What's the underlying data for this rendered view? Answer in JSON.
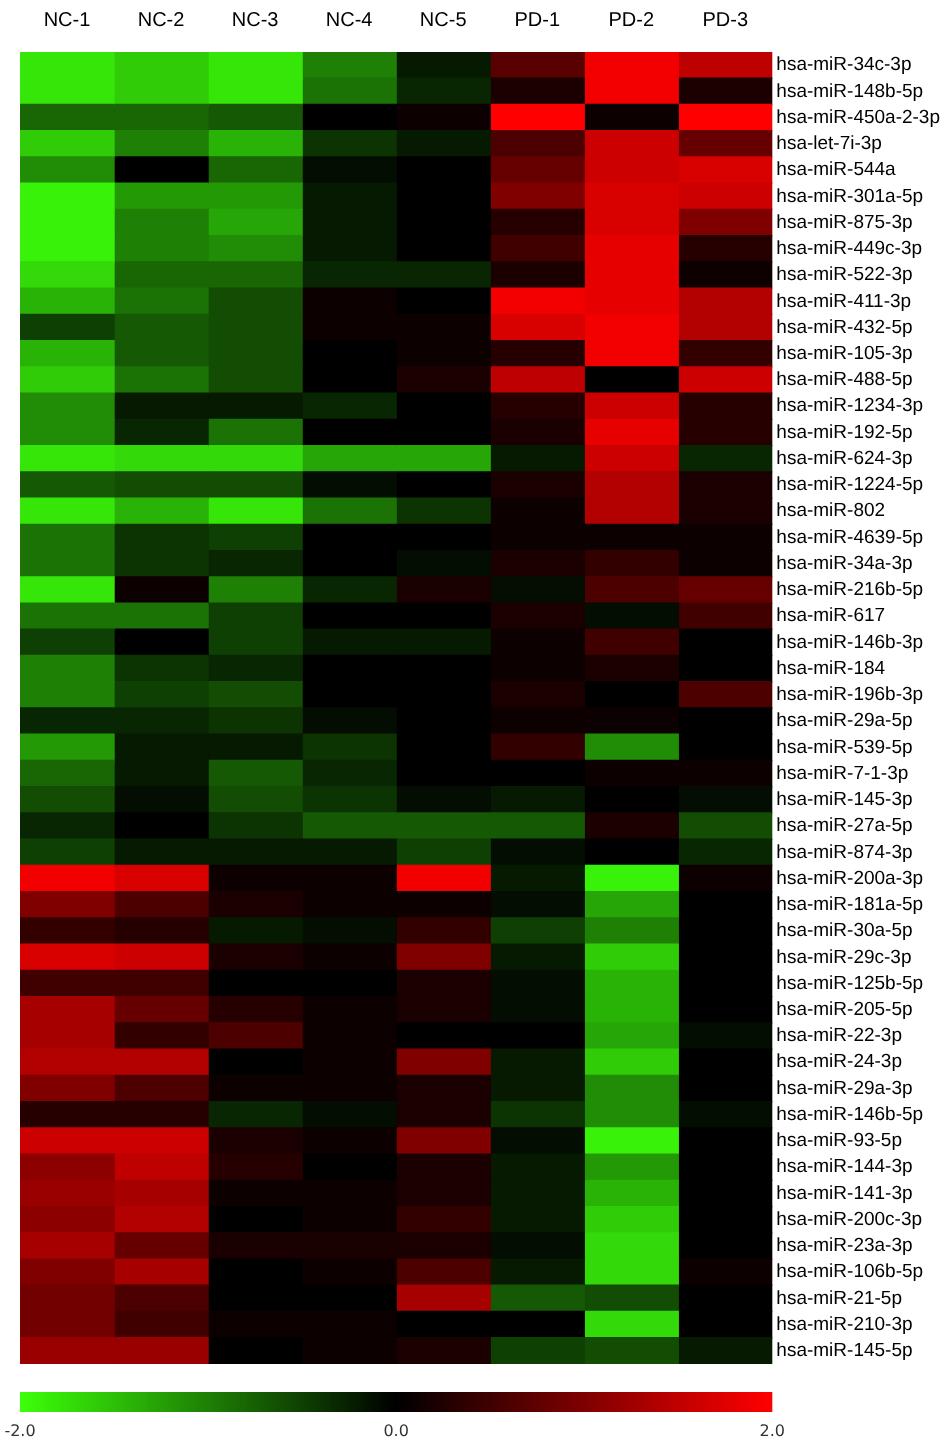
{
  "chart_data": {
    "type": "heatmap",
    "categories": [
      "NC-1",
      "NC-2",
      "NC-3",
      "NC-4",
      "NC-5",
      "PD-1",
      "PD-2",
      "PD-3"
    ],
    "y_categories": [
      "hsa-miR-34c-3p",
      "hsa-miR-148b-5p",
      "hsa-miR-450a-2-3p",
      "hsa-let-7i-3p",
      "hsa-miR-544a",
      "hsa-miR-301a-5p",
      "hsa-miR-875-3p",
      "hsa-miR-449c-3p",
      "hsa-miR-522-3p",
      "hsa-miR-411-3p",
      "hsa-miR-432-5p",
      "hsa-miR-105-3p",
      "hsa-miR-488-5p",
      "hsa-miR-1234-3p",
      "hsa-miR-192-5p",
      "hsa-miR-624-3p",
      "hsa-miR-1224-5p",
      "hsa-miR-802",
      "hsa-miR-4639-5p",
      "hsa-miR-34a-3p",
      "hsa-miR-216b-5p",
      "hsa-miR-617",
      "hsa-miR-146b-3p",
      "hsa-miR-184",
      "hsa-miR-196b-3p",
      "hsa-miR-29a-5p",
      "hsa-miR-539-5p",
      "hsa-miR-7-1-3p",
      "hsa-miR-145-3p",
      "hsa-miR-27a-5p",
      "hsa-miR-874-3p",
      "hsa-miR-200a-3p",
      "hsa-miR-181a-5p",
      "hsa-miR-30a-5p",
      "hsa-miR-29c-3p",
      "hsa-miR-125b-5p",
      "hsa-miR-205-5p",
      "hsa-miR-22-3p",
      "hsa-miR-24-3p",
      "hsa-miR-29a-3p",
      "hsa-miR-146b-5p",
      "hsa-miR-93-5p",
      "hsa-miR-144-3p",
      "hsa-miR-141-3p",
      "hsa-miR-200c-3p",
      "hsa-miR-23a-3p",
      "hsa-miR-106b-5p",
      "hsa-miR-21-5p",
      "hsa-miR-210-3p",
      "hsa-miR-145-5p"
    ],
    "cells": [
      [
        -1.8,
        -1.6,
        -1.8,
        -1.0,
        -0.2,
        0.7,
        1.9,
        1.5
      ],
      [
        -1.8,
        -1.6,
        -1.8,
        -0.9,
        -0.3,
        0.2,
        1.9,
        0.2
      ],
      [
        -0.8,
        -0.8,
        -0.7,
        0.0,
        0.1,
        2.0,
        0.1,
        2.0
      ],
      [
        -1.6,
        -1.0,
        -1.4,
        -0.4,
        -0.2,
        0.6,
        1.6,
        0.8
      ],
      [
        -1.1,
        0.0,
        -0.8,
        -0.1,
        0.0,
        0.8,
        1.6,
        1.7
      ],
      [
        -1.9,
        -1.2,
        -1.2,
        -0.2,
        0.0,
        1.0,
        1.7,
        1.6
      ],
      [
        -1.9,
        -1.0,
        -1.3,
        -0.2,
        0.0,
        0.3,
        1.7,
        1.0
      ],
      [
        -1.9,
        -1.0,
        -1.1,
        -0.2,
        0.0,
        0.5,
        1.8,
        0.3
      ],
      [
        -1.7,
        -0.8,
        -0.8,
        -0.3,
        -0.3,
        0.2,
        1.8,
        0.1
      ],
      [
        -1.4,
        -0.9,
        -0.6,
        0.1,
        0.0,
        1.9,
        1.8,
        1.4
      ],
      [
        -0.5,
        -0.7,
        -0.6,
        0.1,
        0.1,
        1.7,
        1.9,
        1.4
      ],
      [
        -1.4,
        -0.7,
        -0.6,
        0.0,
        0.1,
        0.3,
        1.9,
        0.4
      ],
      [
        -1.6,
        -0.9,
        -0.6,
        0.0,
        0.2,
        1.5,
        0.0,
        1.6
      ],
      [
        -1.1,
        -0.2,
        -0.2,
        -0.3,
        0.0,
        0.3,
        1.6,
        0.3
      ],
      [
        -1.1,
        -0.3,
        -0.9,
        0.0,
        0.0,
        0.2,
        1.8,
        0.3
      ],
      [
        -1.8,
        -1.7,
        -1.7,
        -1.3,
        -1.3,
        -0.2,
        1.6,
        -0.3
      ],
      [
        -0.7,
        -0.6,
        -0.6,
        -0.1,
        0.0,
        0.2,
        1.4,
        0.2
      ],
      [
        -1.8,
        -1.4,
        -1.8,
        -0.9,
        -0.4,
        0.1,
        1.4,
        0.2
      ],
      [
        -0.9,
        -0.4,
        -0.5,
        0.0,
        0.0,
        0.1,
        0.1,
        0.1
      ],
      [
        -0.9,
        -0.4,
        -0.3,
        0.0,
        -0.1,
        0.2,
        0.4,
        0.1
      ],
      [
        -1.8,
        0.1,
        -1.0,
        -0.3,
        0.2,
        -0.1,
        0.6,
        0.8
      ],
      [
        -0.9,
        -0.9,
        -0.5,
        0.0,
        0.0,
        0.2,
        -0.1,
        0.5
      ],
      [
        -0.5,
        0.0,
        -0.5,
        -0.2,
        -0.2,
        0.1,
        0.5,
        0.0
      ],
      [
        -1.0,
        -0.4,
        -0.3,
        0.0,
        0.0,
        0.1,
        0.2,
        0.0
      ],
      [
        -1.0,
        -0.5,
        -0.6,
        0.0,
        0.0,
        0.2,
        0.0,
        0.6
      ],
      [
        -0.3,
        -0.3,
        -0.4,
        -0.1,
        0.0,
        0.1,
        0.1,
        0.0
      ],
      [
        -1.2,
        -0.2,
        -0.2,
        -0.4,
        0.0,
        0.4,
        -1.1,
        0.0
      ],
      [
        -0.8,
        -0.2,
        -0.7,
        -0.3,
        0.0,
        0.0,
        0.1,
        0.1
      ],
      [
        -0.6,
        -0.1,
        -0.6,
        -0.4,
        -0.1,
        -0.2,
        0.0,
        -0.1
      ],
      [
        -0.3,
        0.0,
        -0.4,
        -0.7,
        -0.7,
        -0.7,
        0.2,
        -0.6
      ],
      [
        -0.5,
        -0.2,
        -0.2,
        -0.2,
        -0.5,
        -0.1,
        0.0,
        -0.3
      ],
      [
        1.9,
        1.7,
        0.1,
        0.1,
        1.9,
        -0.2,
        -1.9,
        0.1
      ],
      [
        1.0,
        0.6,
        0.2,
        0.1,
        0.1,
        -0.1,
        -1.3,
        0.0
      ],
      [
        0.4,
        0.3,
        -0.2,
        -0.1,
        0.4,
        -0.5,
        -1.0,
        0.0
      ],
      [
        1.7,
        1.6,
        0.2,
        0.1,
        1.0,
        -0.2,
        -1.6,
        0.0
      ],
      [
        0.5,
        0.5,
        0.0,
        0.0,
        0.2,
        -0.1,
        -1.4,
        0.0
      ],
      [
        1.3,
        0.8,
        0.3,
        0.1,
        0.2,
        -0.1,
        -1.4,
        0.0
      ],
      [
        1.3,
        0.4,
        0.6,
        0.1,
        0.0,
        0.0,
        -1.3,
        -0.1
      ],
      [
        1.4,
        1.4,
        0.0,
        0.1,
        1.0,
        -0.2,
        -1.6,
        0.0
      ],
      [
        1.0,
        0.6,
        0.1,
        0.1,
        0.2,
        -0.2,
        -1.1,
        0.0
      ],
      [
        0.3,
        0.3,
        -0.3,
        -0.1,
        0.2,
        -0.4,
        -1.1,
        -0.1
      ],
      [
        1.6,
        1.6,
        0.2,
        0.1,
        1.0,
        -0.1,
        -1.9,
        0.0
      ],
      [
        1.1,
        1.5,
        0.3,
        0.0,
        0.2,
        -0.2,
        -1.2,
        0.0
      ],
      [
        1.2,
        1.3,
        0.1,
        0.1,
        0.2,
        -0.2,
        -1.4,
        0.0
      ],
      [
        1.1,
        1.4,
        0.0,
        0.1,
        0.4,
        -0.2,
        -1.6,
        0.0
      ],
      [
        1.3,
        0.8,
        0.2,
        0.2,
        0.2,
        -0.1,
        -1.7,
        0.0
      ],
      [
        1.0,
        1.3,
        0.0,
        0.1,
        0.6,
        -0.2,
        -1.7,
        0.1
      ],
      [
        0.9,
        0.6,
        0.0,
        0.0,
        1.3,
        -0.7,
        -0.6,
        0.0
      ],
      [
        0.9,
        0.5,
        0.1,
        0.1,
        0.0,
        0.0,
        -1.7,
        0.0
      ],
      [
        1.2,
        1.2,
        0.0,
        0.1,
        0.2,
        -0.5,
        -0.6,
        -0.2
      ]
    ],
    "clim": [
      -2,
      2
    ],
    "cticks": [
      {
        "value": -2,
        "label": "-2.0"
      },
      {
        "value": 0,
        "label": "0.0"
      },
      {
        "value": 2,
        "label": "2.0"
      }
    ]
  }
}
